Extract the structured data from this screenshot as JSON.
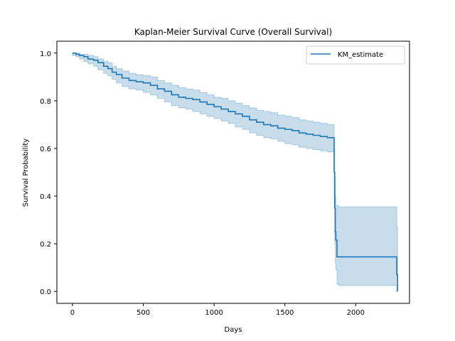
{
  "chart_data": {
    "type": "line",
    "title": "Kaplan-Meier Survival Curve (Overall Survival)",
    "xlabel": "Days",
    "ylabel": "Survival Probability",
    "xlim": [
      -110,
      2380
    ],
    "ylim": [
      -0.05,
      1.05
    ],
    "x_ticks": [
      0,
      500,
      1000,
      1500,
      2000
    ],
    "x_tick_labels": [
      "0",
      "500",
      "1000",
      "1500",
      "2000"
    ],
    "y_ticks": [
      0.0,
      0.2,
      0.4,
      0.6,
      0.8,
      1.0
    ],
    "y_tick_labels": [
      "0.0",
      "0.2",
      "0.4",
      "0.6",
      "0.8",
      "1.0"
    ],
    "grid": false,
    "legend_position": "top-right",
    "colors": {
      "line": "#1f77b4",
      "band": "#1f77b4"
    },
    "series": [
      {
        "name": "KM_estimate",
        "step": true,
        "x": [
          0,
          25,
          50,
          80,
          110,
          150,
          180,
          220,
          250,
          280,
          310,
          350,
          400,
          450,
          500,
          550,
          600,
          650,
          700,
          750,
          800,
          850,
          900,
          950,
          1000,
          1050,
          1100,
          1150,
          1200,
          1250,
          1300,
          1350,
          1400,
          1450,
          1500,
          1550,
          1600,
          1650,
          1700,
          1750,
          1800,
          1840,
          1848,
          1852,
          1856,
          1860,
          1868,
          1880,
          2100,
          2250,
          2290,
          2296
        ],
        "y": [
          1.0,
          0.995,
          0.99,
          0.985,
          0.975,
          0.97,
          0.96,
          0.945,
          0.935,
          0.92,
          0.91,
          0.895,
          0.885,
          0.88,
          0.875,
          0.865,
          0.85,
          0.84,
          0.825,
          0.815,
          0.81,
          0.805,
          0.795,
          0.785,
          0.775,
          0.765,
          0.755,
          0.745,
          0.735,
          0.72,
          0.71,
          0.7,
          0.695,
          0.685,
          0.68,
          0.675,
          0.665,
          0.66,
          0.655,
          0.65,
          0.645,
          0.645,
          0.5,
          0.35,
          0.25,
          0.215,
          0.145,
          0.145,
          0.145,
          0.145,
          0.07,
          0.0
        ],
        "ci_lower": [
          0.99,
          0.985,
          0.975,
          0.965,
          0.955,
          0.945,
          0.93,
          0.915,
          0.905,
          0.89,
          0.875,
          0.86,
          0.85,
          0.845,
          0.835,
          0.825,
          0.81,
          0.795,
          0.78,
          0.77,
          0.765,
          0.755,
          0.745,
          0.735,
          0.725,
          0.715,
          0.705,
          0.69,
          0.68,
          0.665,
          0.655,
          0.645,
          0.64,
          0.63,
          0.62,
          0.615,
          0.605,
          0.6,
          0.595,
          0.59,
          0.585,
          0.585,
          0.4,
          0.2,
          0.12,
          0.09,
          0.03,
          0.025,
          0.025,
          0.025,
          0.0,
          0.0
        ],
        "ci_upper": [
          1.0,
          1.0,
          0.995,
          0.995,
          0.99,
          0.985,
          0.975,
          0.965,
          0.96,
          0.945,
          0.935,
          0.925,
          0.915,
          0.91,
          0.905,
          0.9,
          0.885,
          0.875,
          0.865,
          0.855,
          0.85,
          0.845,
          0.835,
          0.825,
          0.815,
          0.81,
          0.8,
          0.79,
          0.78,
          0.77,
          0.76,
          0.755,
          0.75,
          0.74,
          0.735,
          0.73,
          0.72,
          0.715,
          0.71,
          0.705,
          0.7,
          0.7,
          0.6,
          0.48,
          0.4,
          0.36,
          0.36,
          0.355,
          0.355,
          0.355,
          0.27,
          0.27
        ]
      }
    ]
  }
}
